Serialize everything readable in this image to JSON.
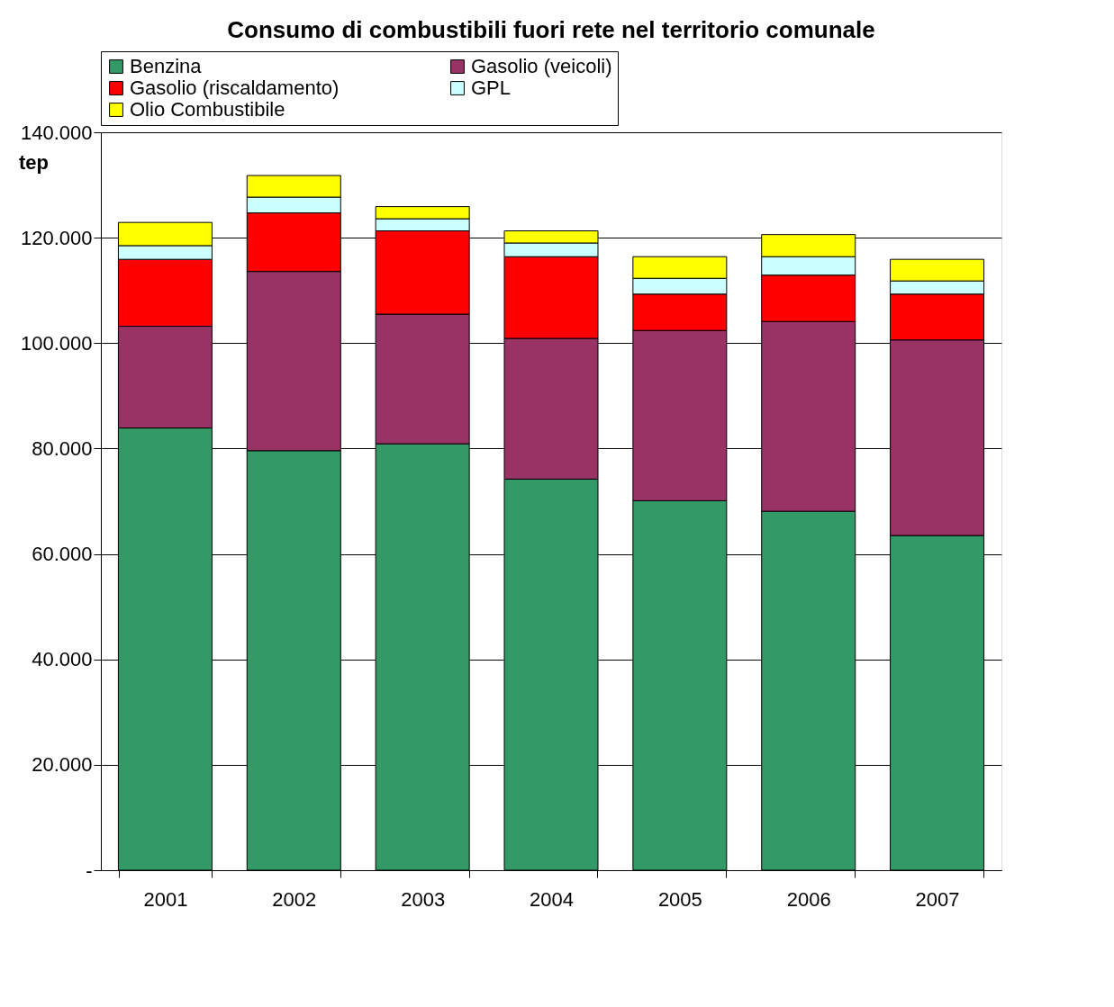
{
  "chart_data": {
    "type": "bar",
    "title": "Consumo di combustibili fuori rete nel territorio comunale",
    "ylabel": "tep",
    "categories": [
      "2001",
      "2002",
      "2003",
      "2004",
      "2005",
      "2006",
      "2007"
    ],
    "stacked": true,
    "series": [
      {
        "name": "Benzina",
        "color": "#339966",
        "values": [
          83.9,
          79.6,
          80.9,
          74.2,
          70.1,
          68.1,
          63.5
        ]
      },
      {
        "name": "Gasolio (veicoli)",
        "color": "#993366",
        "values": [
          19.3,
          34.0,
          24.6,
          26.7,
          32.3,
          36.0,
          37.1
        ]
      },
      {
        "name": "Gasolio (riscaldamento)",
        "color": "#ff0000",
        "values": [
          12.7,
          11.1,
          15.8,
          15.5,
          6.9,
          8.8,
          8.7
        ]
      },
      {
        "name": "GPL",
        "color": "#ccffff",
        "values": [
          2.6,
          3.0,
          2.3,
          2.6,
          3.0,
          3.5,
          2.5
        ]
      },
      {
        "name": "Olio Combustibile",
        "color": "#ffff00",
        "values": [
          4.4,
          4.1,
          2.3,
          2.3,
          4.1,
          4.2,
          4.1
        ]
      }
    ],
    "ylim": [
      0,
      140
    ],
    "yticks": [
      {
        "value": 0,
        "label": "-"
      },
      {
        "value": 20,
        "label": "20.000"
      },
      {
        "value": 40,
        "label": "40.000"
      },
      {
        "value": 60,
        "label": "60.000"
      },
      {
        "value": 80,
        "label": "80.000"
      },
      {
        "value": 100,
        "label": "100.000"
      },
      {
        "value": 120,
        "label": "120.000"
      },
      {
        "value": 140,
        "label": "140.000"
      }
    ],
    "grid": "y",
    "legend": "top"
  }
}
